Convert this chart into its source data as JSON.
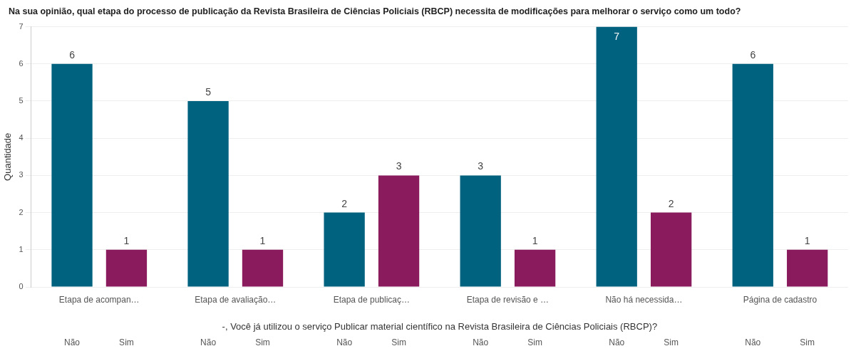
{
  "chart_data": {
    "type": "bar",
    "title": "Na sua opinião, qual etapa do processo de publicação da Revista Brasileira de Ciências Policiais (RBCP) necessita de modificações para melhorar o serviço como um todo?",
    "xlabel": "-, Você já utilizou o serviço Publicar material científico na Revista Brasileira de Ciências Policiais (RBCP)?",
    "ylabel": "Quantidade",
    "categories": [
      "Etapa de acompan…",
      "Etapa de avaliação…",
      "Etapa de publicaç…",
      "Etapa de revisão e …",
      "Não há necessida…",
      "Página de cadastro"
    ],
    "series": [
      {
        "name": "Não",
        "color": "#00627f",
        "values": [
          6,
          5,
          2,
          3,
          7,
          6
        ]
      },
      {
        "name": "Sim",
        "color": "#8a1c5e",
        "values": [
          1,
          1,
          3,
          1,
          2,
          1
        ]
      }
    ],
    "ylim": [
      0,
      7
    ],
    "yticks": [
      0,
      1,
      2,
      3,
      4,
      5,
      6,
      7
    ],
    "grid": "y",
    "legend": false,
    "data_labels": true
  }
}
